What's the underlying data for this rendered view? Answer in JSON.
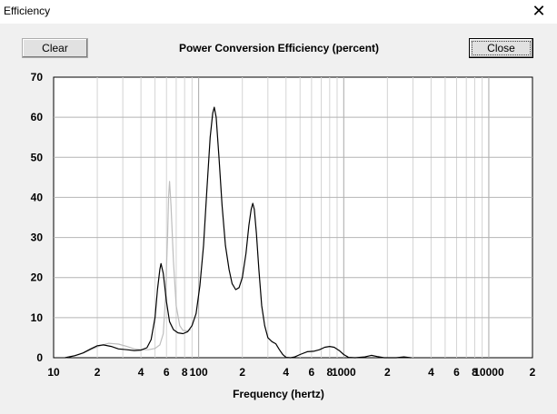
{
  "window": {
    "title": "Efficiency",
    "close_glyph": "✕"
  },
  "buttons": {
    "clear_label": "Clear",
    "close_label": "Close"
  },
  "chart_data": {
    "type": "line",
    "title": "Power Conversion Efficiency (percent)",
    "xlabel": "Frequency (hertz)",
    "ylabel": "",
    "x_scale": "log",
    "xlim": [
      10,
      20000
    ],
    "ylim": [
      0,
      70
    ],
    "grid": true,
    "y_ticks": [
      "0",
      "10",
      "20",
      "30",
      "40",
      "50",
      "60",
      "70"
    ],
    "x_ticks": [
      {
        "value": 10,
        "label": "10"
      },
      {
        "value": 20,
        "label": "2"
      },
      {
        "value": 40,
        "label": "4"
      },
      {
        "value": 60,
        "label": "6"
      },
      {
        "value": 80,
        "label": "8"
      },
      {
        "value": 100,
        "label": "100"
      },
      {
        "value": 200,
        "label": "2"
      },
      {
        "value": 400,
        "label": "4"
      },
      {
        "value": 600,
        "label": "6"
      },
      {
        "value": 800,
        "label": "8"
      },
      {
        "value": 1000,
        "label": "1000"
      },
      {
        "value": 2000,
        "label": "2"
      },
      {
        "value": 4000,
        "label": "4"
      },
      {
        "value": 6000,
        "label": "6"
      },
      {
        "value": 8000,
        "label": "8"
      },
      {
        "value": 10000,
        "label": "10000"
      },
      {
        "value": 20000,
        "label": "2"
      }
    ],
    "series": [
      {
        "color": "#000000",
        "points": [
          [
            12,
            0
          ],
          [
            14,
            0.5
          ],
          [
            16,
            1.2
          ],
          [
            18,
            2.2
          ],
          [
            20,
            3.0
          ],
          [
            22,
            3.2
          ],
          [
            25,
            2.8
          ],
          [
            28,
            2.2
          ],
          [
            32,
            2.0
          ],
          [
            36,
            1.8
          ],
          [
            40,
            1.9
          ],
          [
            44,
            2.5
          ],
          [
            47,
            4.5
          ],
          [
            50,
            10
          ],
          [
            52,
            17
          ],
          [
            54,
            22
          ],
          [
            55,
            23.5
          ],
          [
            57,
            21
          ],
          [
            60,
            14
          ],
          [
            63,
            9
          ],
          [
            67,
            7
          ],
          [
            72,
            6.2
          ],
          [
            78,
            6.0
          ],
          [
            84,
            6.5
          ],
          [
            90,
            8
          ],
          [
            96,
            11
          ],
          [
            102,
            18
          ],
          [
            108,
            28
          ],
          [
            114,
            42
          ],
          [
            120,
            55
          ],
          [
            125,
            61
          ],
          [
            128,
            62.5
          ],
          [
            132,
            60
          ],
          [
            138,
            50
          ],
          [
            145,
            38
          ],
          [
            153,
            28
          ],
          [
            162,
            22
          ],
          [
            170,
            18.5
          ],
          [
            180,
            17
          ],
          [
            190,
            17.5
          ],
          [
            200,
            20
          ],
          [
            212,
            26
          ],
          [
            222,
            33
          ],
          [
            230,
            37
          ],
          [
            236,
            38.5
          ],
          [
            242,
            37
          ],
          [
            250,
            31
          ],
          [
            260,
            22
          ],
          [
            272,
            13
          ],
          [
            285,
            8
          ],
          [
            300,
            5
          ],
          [
            320,
            4
          ],
          [
            340,
            3.5
          ],
          [
            360,
            2
          ],
          [
            380,
            0.8
          ],
          [
            400,
            0.1
          ],
          [
            430,
            0
          ],
          [
            460,
            0.2
          ],
          [
            500,
            0.8
          ],
          [
            560,
            1.5
          ],
          [
            620,
            1.6
          ],
          [
            680,
            2.0
          ],
          [
            740,
            2.6
          ],
          [
            800,
            2.8
          ],
          [
            860,
            2.6
          ],
          [
            930,
            1.8
          ],
          [
            1000,
            0.8
          ],
          [
            1080,
            0.1
          ],
          [
            1200,
            0
          ],
          [
            1400,
            0.2
          ],
          [
            1550,
            0.6
          ],
          [
            1700,
            0.3
          ],
          [
            1900,
            0
          ],
          [
            2300,
            0
          ],
          [
            2600,
            0.2
          ],
          [
            2900,
            0
          ]
        ]
      },
      {
        "color": "#bdbdbd",
        "points": [
          [
            12,
            0
          ],
          [
            15,
            0.8
          ],
          [
            18,
            2.0
          ],
          [
            21,
            3.0
          ],
          [
            24,
            3.6
          ],
          [
            28,
            3.4
          ],
          [
            32,
            2.8
          ],
          [
            36,
            2.2
          ],
          [
            40,
            2.0
          ],
          [
            45,
            2.0
          ],
          [
            50,
            2.3
          ],
          [
            54,
            3.2
          ],
          [
            57,
            6
          ],
          [
            59,
            15
          ],
          [
            61,
            30
          ],
          [
            62,
            40
          ],
          [
            63,
            44
          ],
          [
            64.5,
            38
          ],
          [
            67,
            24
          ],
          [
            70,
            13
          ],
          [
            74,
            8
          ],
          [
            78,
            6.8
          ],
          [
            83,
            6.7
          ],
          [
            88,
            7
          ]
        ]
      }
    ]
  }
}
